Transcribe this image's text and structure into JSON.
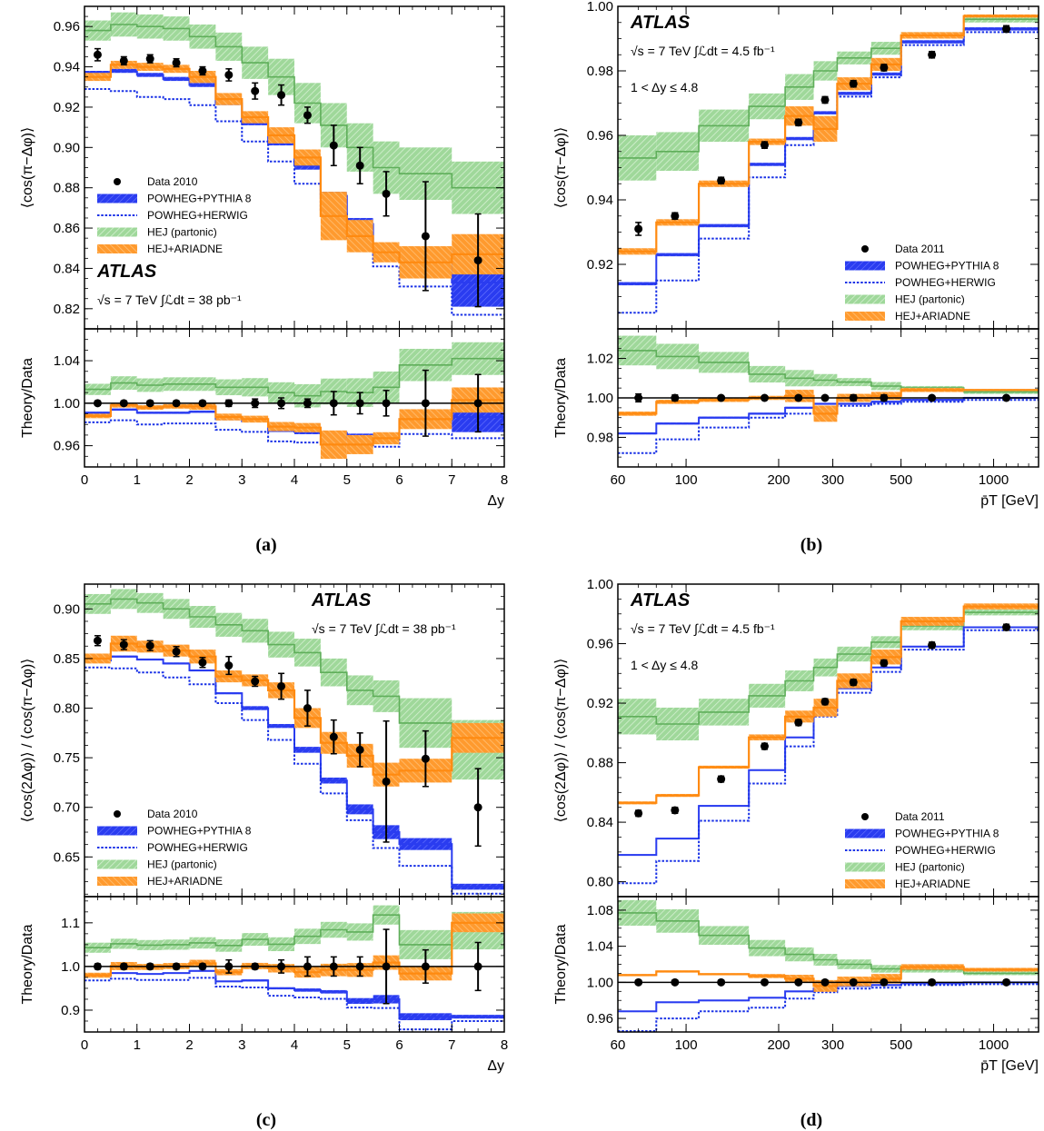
{
  "colors": {
    "data": "#000000",
    "powheg_pythia": "#2a3cf0",
    "powheg_herwig": "#1a32e6",
    "hej_partonic": "#8fd08a",
    "hej_partonic_line": "#5fae5a",
    "hej_ariadne": "#ff9a2e",
    "hej_ariadne_line": "#ff8a10"
  },
  "legend": {
    "data_2010": "Data 2010",
    "data_2011": "Data 2011",
    "powheg_pythia": "POWHEG+PYTHIA 8",
    "powheg_herwig": "POWHEG+HERWIG",
    "hej_partonic": "HEJ (partonic)",
    "hej_ariadne": "HEJ+ARIADNE"
  },
  "annotations": {
    "atlas": "ATLAS",
    "energy_2010": "√s = 7 TeV  ∫ℒdt = 38 pb⁻¹",
    "energy_2011": "√s = 7 TeV  ∫ℒdt = 4.5 fb⁻¹",
    "dy_range": "1 < Δy ≤ 4.8"
  },
  "panel_labels": [
    "(a)",
    "(b)",
    "(c)",
    "(d)"
  ],
  "chart_data": [
    {
      "panel": "(a)",
      "type": "line",
      "xlabel": "Δy",
      "ylabel_top": "⟨cos(π−Δφ)⟩",
      "ylabel_bottom": "Theory/Data",
      "xscale": "linear",
      "xlim": [
        0,
        8
      ],
      "xticks": [
        0,
        1,
        2,
        3,
        4,
        5,
        6,
        7,
        8
      ],
      "ylim_top": [
        0.81,
        0.97
      ],
      "yticks_top": [
        0.82,
        0.84,
        0.86,
        0.88,
        0.9,
        0.92,
        0.94,
        0.96
      ],
      "ylim_bottom": [
        0.94,
        1.07
      ],
      "yticks_bottom": [
        0.96,
        1.0,
        1.04
      ],
      "legend_position": "center-left",
      "data_label": "Data 2010",
      "energy_label": "energy_2010",
      "atlas_position": "bottom-left",
      "show_dy_range": false,
      "bins": [
        0,
        0.5,
        1,
        1.5,
        2,
        2.5,
        3,
        3.5,
        4,
        4.5,
        5,
        5.5,
        6,
        7,
        8
      ],
      "data": {
        "x": [
          0.25,
          0.75,
          1.25,
          1.75,
          2.25,
          2.75,
          3.25,
          3.75,
          4.25,
          4.75,
          5.25,
          5.75,
          6.5,
          7.5
        ],
        "y": [
          0.946,
          0.943,
          0.944,
          0.942,
          0.938,
          0.936,
          0.928,
          0.926,
          0.916,
          0.901,
          0.891,
          0.877,
          0.856,
          0.844
        ],
        "err": [
          0.003,
          0.002,
          0.002,
          0.002,
          0.002,
          0.003,
          0.004,
          0.005,
          0.004,
          0.01,
          0.009,
          0.011,
          0.027,
          0.023
        ]
      },
      "powheg_pythia": {
        "values": [
          0.937,
          0.938,
          0.936,
          0.934,
          0.931,
          0.922,
          0.912,
          0.902,
          0.891,
          0.876,
          0.862,
          0.848,
          0.843,
          0.833
        ],
        "band": [
          0.001,
          0.001,
          0.001,
          0.001,
          0.001,
          0.001,
          0.001,
          0.001,
          0.002,
          0.002,
          0.003,
          0.003,
          0.006,
          0.012
        ]
      },
      "powheg_herwig": {
        "values": [
          0.929,
          0.928,
          0.925,
          0.924,
          0.921,
          0.913,
          0.903,
          0.893,
          0.882,
          0.868,
          0.855,
          0.841,
          0.831,
          0.817
        ]
      },
      "hej_partonic": {
        "values": [
          0.958,
          0.961,
          0.96,
          0.959,
          0.955,
          0.95,
          0.942,
          0.935,
          0.922,
          0.911,
          0.9,
          0.89,
          0.887,
          0.88
        ],
        "band": [
          0.005,
          0.006,
          0.006,
          0.006,
          0.006,
          0.007,
          0.008,
          0.009,
          0.01,
          0.011,
          0.012,
          0.013,
          0.013,
          0.013
        ]
      },
      "hej_ariadne": {
        "values": [
          0.935,
          0.941,
          0.94,
          0.939,
          0.935,
          0.924,
          0.915,
          0.906,
          0.895,
          0.866,
          0.856,
          0.848,
          0.843,
          0.847
        ],
        "band": [
          0.002,
          0.002,
          0.002,
          0.002,
          0.003,
          0.003,
          0.003,
          0.004,
          0.004,
          0.012,
          0.008,
          0.005,
          0.008,
          0.01
        ]
      },
      "ratio": {
        "data_err": [
          0.002,
          0.002,
          0.002,
          0.002,
          0.002,
          0.003,
          0.004,
          0.005,
          0.004,
          0.011,
          0.01,
          0.012,
          0.031,
          0.027
        ],
        "powheg_pythia": [
          0.991,
          0.994,
          0.991,
          0.991,
          0.992,
          0.985,
          0.983,
          0.974,
          0.973,
          0.972,
          0.968,
          0.967,
          0.985,
          0.987
        ],
        "powheg_herwig": [
          0.982,
          0.984,
          0.98,
          0.981,
          0.981,
          0.975,
          0.973,
          0.964,
          0.963,
          0.963,
          0.96,
          0.959,
          0.971,
          0.967
        ],
        "hej_partonic": [
          1.013,
          1.019,
          1.017,
          1.018,
          1.018,
          1.015,
          1.015,
          1.01,
          1.007,
          1.011,
          1.01,
          1.015,
          1.036,
          1.042
        ],
        "hej_ariadne": [
          0.988,
          0.998,
          0.996,
          0.997,
          0.997,
          0.987,
          0.985,
          0.978,
          0.977,
          0.961,
          0.961,
          0.967,
          0.985,
          1.003
        ]
      }
    },
    {
      "panel": "(b)",
      "type": "line",
      "xlabel": "p̄T [GeV]",
      "ylabel_top": "⟨cos(π−Δφ)⟩",
      "ylabel_bottom": "Theory/Data",
      "xscale": "log",
      "xlim": [
        60,
        1400
      ],
      "xticks": [
        60,
        100,
        200,
        300,
        500,
        1000
      ],
      "ylim_top": [
        0.9,
        1.0
      ],
      "yticks_top": [
        0.92,
        0.94,
        0.96,
        0.98,
        1.0
      ],
      "ylim_bottom": [
        0.965,
        1.035
      ],
      "yticks_bottom": [
        0.98,
        1.0,
        1.02
      ],
      "legend_position": "center-right",
      "data_label": "Data 2011",
      "energy_label": "energy_2011",
      "atlas_position": "top-left",
      "show_dy_range": true,
      "bins": [
        60,
        80,
        110,
        160,
        210,
        260,
        310,
        400,
        500,
        800,
        1400
      ],
      "data": {
        "x": [
          70,
          92,
          130,
          180,
          232,
          283,
          350,
          440,
          630,
          1100
        ],
        "y": [
          0.931,
          0.935,
          0.946,
          0.957,
          0.964,
          0.971,
          0.976,
          0.981,
          0.985,
          0.993
        ],
        "err": [
          0.002,
          0.001,
          0.001,
          0.001,
          0.001,
          0.001,
          0.001,
          0.001,
          0.001,
          0.001
        ]
      },
      "powheg_pythia": {
        "values": [
          0.914,
          0.923,
          0.932,
          0.951,
          0.959,
          0.967,
          0.973,
          0.979,
          0.989,
          0.993
        ],
        "band": [
          0.0005,
          0.0005,
          0.0005,
          0.0005,
          0.0005,
          0.0005,
          0.0005,
          0.0005,
          0.0005,
          0.0005
        ]
      },
      "powheg_herwig": {
        "values": [
          0.905,
          0.915,
          0.928,
          0.947,
          0.957,
          0.965,
          0.972,
          0.978,
          0.988,
          0.992
        ]
      },
      "hej_partonic": {
        "values": [
          0.953,
          0.955,
          0.963,
          0.969,
          0.975,
          0.98,
          0.984,
          0.987,
          0.991,
          0.996
        ],
        "band": [
          0.007,
          0.006,
          0.005,
          0.004,
          0.004,
          0.003,
          0.002,
          0.002,
          0.001,
          0.001
        ]
      },
      "hej_ariadne": {
        "values": [
          0.924,
          0.933,
          0.945,
          0.958,
          0.966,
          0.962,
          0.976,
          0.982,
          0.991,
          0.997
        ],
        "band": [
          0.001,
          0.001,
          0.001,
          0.001,
          0.003,
          0.004,
          0.002,
          0.002,
          0.001,
          0.0005
        ]
      },
      "ratio": {
        "data_err": [
          0.002,
          0.0015,
          0.001,
          0.001,
          0.001,
          0.001,
          0.0015,
          0.0015,
          0.001,
          0.001
        ],
        "powheg_pythia": [
          0.982,
          0.987,
          0.99,
          0.992,
          0.995,
          0.997,
          0.997,
          0.998,
          0.999,
          1.0
        ],
        "powheg_herwig": [
          0.972,
          0.979,
          0.985,
          0.99,
          0.992,
          0.995,
          0.996,
          0.997,
          0.998,
          0.999
        ],
        "hej_partonic": [
          1.024,
          1.021,
          1.018,
          1.012,
          1.01,
          1.009,
          1.008,
          1.006,
          1.005,
          1.003
        ],
        "hej_ariadne": [
          0.992,
          0.998,
          0.999,
          1.0,
          1.001,
          0.992,
          1.0,
          1.001,
          1.004,
          1.004
        ]
      }
    },
    {
      "panel": "(c)",
      "type": "line",
      "xlabel": "Δy",
      "ylabel_top": "⟨cos(2Δφ)⟩ / ⟨cos(π−Δφ)⟩",
      "ylabel_bottom": "Theory/Data",
      "xscale": "linear",
      "xlim": [
        0,
        8
      ],
      "xticks": [
        0,
        1,
        2,
        3,
        4,
        5,
        6,
        7,
        8
      ],
      "ylim_top": [
        0.61,
        0.925
      ],
      "yticks_top": [
        0.65,
        0.7,
        0.75,
        0.8,
        0.85,
        0.9
      ],
      "ylim_bottom": [
        0.85,
        1.16
      ],
      "yticks_bottom": [
        0.9,
        1.0,
        1.1
      ],
      "legend_position": "bottom-left",
      "data_label": "Data 2010",
      "energy_label": "energy_2010",
      "atlas_position": "top-right",
      "show_dy_range": false,
      "bins": [
        0,
        0.5,
        1,
        1.5,
        2,
        2.5,
        3,
        3.5,
        4,
        4.5,
        5,
        5.5,
        6,
        7,
        8
      ],
      "data": {
        "x": [
          0.25,
          0.75,
          1.25,
          1.75,
          2.25,
          2.75,
          3.25,
          3.75,
          4.25,
          4.75,
          5.25,
          5.75,
          6.5,
          7.5
        ],
        "y": [
          0.868,
          0.864,
          0.863,
          0.857,
          0.846,
          0.843,
          0.827,
          0.822,
          0.8,
          0.771,
          0.758,
          0.726,
          0.749,
          0.7
        ],
        "err": [
          0.005,
          0.005,
          0.005,
          0.005,
          0.005,
          0.009,
          0.005,
          0.013,
          0.018,
          0.017,
          0.017,
          0.061,
          0.028,
          0.039
        ]
      },
      "powheg_pythia": {
        "values": [
          0.848,
          0.852,
          0.849,
          0.845,
          0.838,
          0.815,
          0.8,
          0.782,
          0.758,
          0.727,
          0.698,
          0.675,
          0.663,
          0.62
        ],
        "band": [
          0.001,
          0.001,
          0.001,
          0.001,
          0.001,
          0.001,
          0.002,
          0.002,
          0.003,
          0.003,
          0.005,
          0.007,
          0.006,
          0.003
        ]
      },
      "powheg_herwig": {
        "values": [
          0.841,
          0.84,
          0.836,
          0.831,
          0.824,
          0.805,
          0.788,
          0.768,
          0.744,
          0.714,
          0.687,
          0.659,
          0.641,
          0.613
        ]
      },
      "hej_partonic": {
        "values": [
          0.905,
          0.91,
          0.906,
          0.9,
          0.892,
          0.884,
          0.878,
          0.864,
          0.856,
          0.836,
          0.818,
          0.812,
          0.785,
          0.758
        ],
        "band": [
          0.01,
          0.01,
          0.01,
          0.01,
          0.011,
          0.012,
          0.012,
          0.013,
          0.014,
          0.014,
          0.015,
          0.016,
          0.025,
          0.03
        ]
      },
      "hej_ariadne": {
        "values": [
          0.85,
          0.865,
          0.862,
          0.858,
          0.852,
          0.832,
          0.828,
          0.818,
          0.79,
          0.765,
          0.752,
          0.733,
          0.737,
          0.77
        ],
        "band": [
          0.005,
          0.008,
          0.006,
          0.006,
          0.007,
          0.006,
          0.006,
          0.008,
          0.01,
          0.011,
          0.012,
          0.012,
          0.012,
          0.015
        ]
      },
      "ratio": {
        "data_err": [
          0.006,
          0.006,
          0.006,
          0.006,
          0.006,
          0.015,
          0.006,
          0.015,
          0.022,
          0.022,
          0.022,
          0.085,
          0.038,
          0.055
        ],
        "powheg_pythia": [
          0.978,
          0.985,
          0.983,
          0.985,
          0.99,
          0.966,
          0.968,
          0.95,
          0.946,
          0.942,
          0.921,
          0.925,
          0.885,
          0.885
        ],
        "powheg_herwig": [
          0.968,
          0.972,
          0.969,
          0.969,
          0.974,
          0.954,
          0.952,
          0.933,
          0.929,
          0.926,
          0.906,
          0.905,
          0.856,
          0.875
        ],
        "hej_partonic": [
          1.043,
          1.052,
          1.049,
          1.05,
          1.054,
          1.048,
          1.062,
          1.051,
          1.069,
          1.084,
          1.079,
          1.118,
          1.05,
          1.082
        ],
        "hej_ariadne": [
          0.98,
          1.001,
          0.999,
          1.001,
          1.007,
          0.987,
          1.001,
          0.996,
          0.987,
          0.992,
          0.992,
          1.009,
          0.984,
          1.1
        ]
      }
    },
    {
      "panel": "(d)",
      "type": "line",
      "xlabel": "p̄T [GeV]",
      "ylabel_top": "⟨cos(2Δφ)⟩ / ⟨cos(π−Δφ)⟩",
      "ylabel_bottom": "Theory/Data",
      "xscale": "log",
      "xlim": [
        60,
        1400
      ],
      "xticks": [
        60,
        100,
        200,
        300,
        500,
        1000
      ],
      "ylim_top": [
        0.79,
        1.0
      ],
      "yticks_top": [
        0.8,
        0.84,
        0.88,
        0.92,
        0.96,
        1.0
      ],
      "ylim_bottom": [
        0.945,
        1.095
      ],
      "yticks_bottom": [
        0.96,
        1.0,
        1.04,
        1.08
      ],
      "legend_position": "bottom-right",
      "data_label": "Data 2011",
      "energy_label": "energy_2011",
      "atlas_position": "top-left",
      "show_dy_range": true,
      "bins": [
        60,
        80,
        110,
        160,
        210,
        260,
        310,
        400,
        500,
        800,
        1400
      ],
      "data": {
        "x": [
          70,
          92,
          130,
          180,
          232,
          283,
          350,
          440,
          630,
          1100
        ],
        "y": [
          0.846,
          0.848,
          0.869,
          0.891,
          0.907,
          0.921,
          0.934,
          0.947,
          0.959,
          0.971
        ],
        "err": [
          0.002,
          0.002,
          0.002,
          0.002,
          0.002,
          0.002,
          0.002,
          0.002,
          0.002,
          0.002
        ]
      },
      "powheg_pythia": {
        "values": [
          0.818,
          0.829,
          0.851,
          0.875,
          0.897,
          0.916,
          0.93,
          0.944,
          0.958,
          0.971
        ],
        "band": [
          0.0005,
          0.0005,
          0.0005,
          0.0005,
          0.0005,
          0.0005,
          0.0005,
          0.0005,
          0.0005,
          0.0005
        ]
      },
      "powheg_herwig": {
        "values": [
          0.799,
          0.814,
          0.841,
          0.866,
          0.891,
          0.911,
          0.927,
          0.941,
          0.956,
          0.969
        ]
      },
      "hej_partonic": {
        "values": [
          0.911,
          0.906,
          0.914,
          0.925,
          0.935,
          0.944,
          0.953,
          0.961,
          0.972,
          0.981
        ],
        "band": [
          0.012,
          0.011,
          0.009,
          0.008,
          0.007,
          0.006,
          0.005,
          0.004,
          0.003,
          0.002
        ]
      },
      "hej_ariadne": {
        "values": [
          0.853,
          0.858,
          0.877,
          0.897,
          0.911,
          0.917,
          0.935,
          0.951,
          0.975,
          0.985
        ],
        "band": [
          0.001,
          0.001,
          0.001,
          0.002,
          0.004,
          0.006,
          0.005,
          0.005,
          0.003,
          0.002
        ]
      },
      "ratio": {
        "data_err": [
          0.002,
          0.002,
          0.002,
          0.002,
          0.002,
          0.002,
          0.002,
          0.002,
          0.002,
          0.002
        ],
        "powheg_pythia": [
          0.968,
          0.978,
          0.98,
          0.983,
          0.99,
          0.993,
          0.996,
          0.997,
          0.999,
          1.0
        ],
        "powheg_herwig": [
          0.946,
          0.96,
          0.968,
          0.972,
          0.982,
          0.989,
          0.993,
          0.994,
          0.997,
          0.998
        ],
        "hej_partonic": [
          1.077,
          1.068,
          1.052,
          1.038,
          1.031,
          1.025,
          1.02,
          1.015,
          1.014,
          1.01
        ],
        "hej_ariadne": [
          1.008,
          1.012,
          1.009,
          1.007,
          1.004,
          0.996,
          1.001,
          1.004,
          1.017,
          1.014
        ]
      }
    }
  ]
}
